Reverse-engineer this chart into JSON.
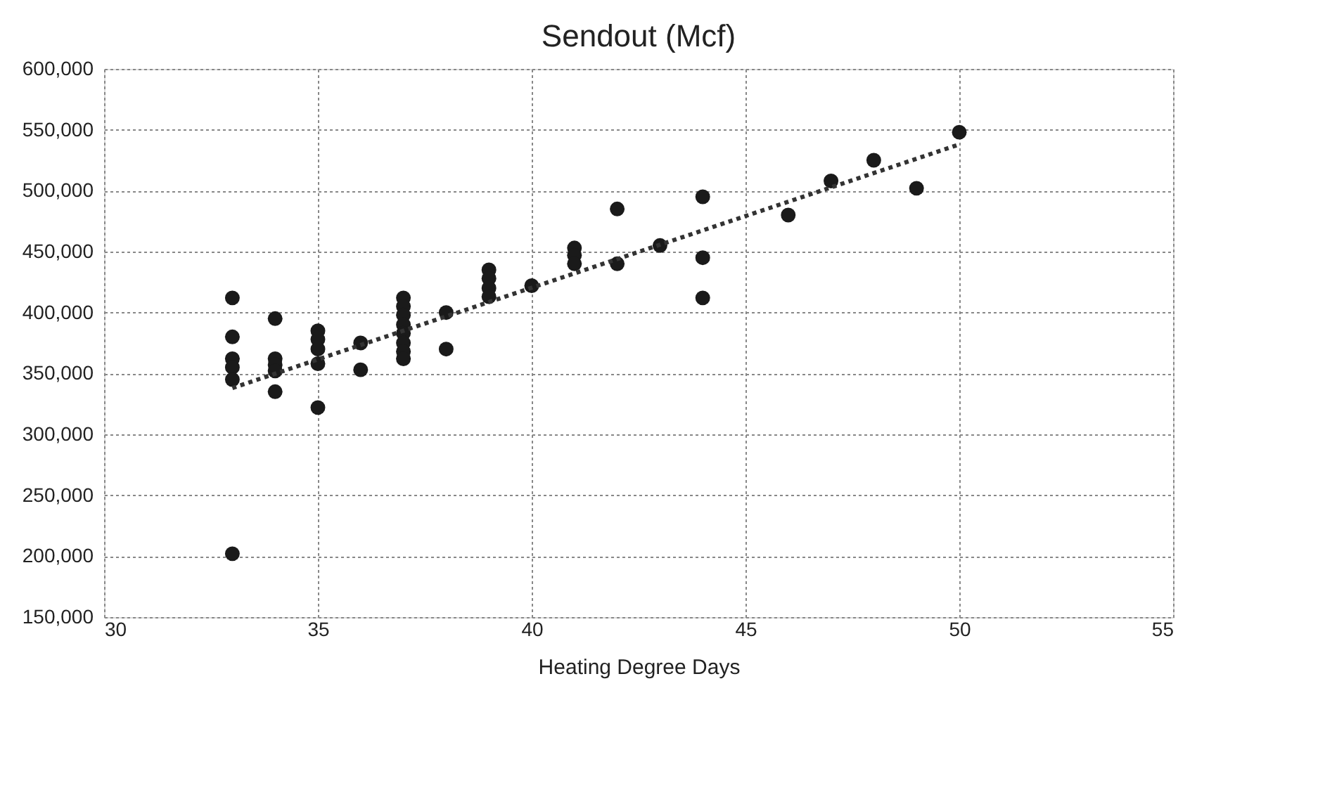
{
  "chart_data": {
    "type": "scatter",
    "title": "Sendout (Mcf)",
    "xlabel": "Heating Degree Days",
    "xlim": [
      30,
      55
    ],
    "xticks": [
      30,
      35,
      40,
      45,
      50,
      55
    ],
    "ylim": [
      150000,
      600000
    ],
    "yticks": [
      {
        "value": 150000,
        "label": "150,000"
      },
      {
        "value": 200000,
        "label": "200,000"
      },
      {
        "value": 250000,
        "label": "250,000"
      },
      {
        "value": 300000,
        "label": "300,000"
      },
      {
        "value": 350000,
        "label": "350,000"
      },
      {
        "value": 400000,
        "label": "400,000"
      },
      {
        "value": 450000,
        "label": "450,000"
      },
      {
        "value": 500000,
        "label": "500,000"
      },
      {
        "value": 550000,
        "label": "550,000"
      },
      {
        "value": 600000,
        "label": "600,000"
      }
    ],
    "grid": true,
    "marker": "circle",
    "series": [
      {
        "color": "#1a1a1a",
        "x": [
          33,
          33,
          33,
          33,
          33,
          33,
          34,
          34,
          34,
          34,
          34,
          35,
          35,
          35,
          35,
          35,
          36,
          36,
          37,
          37,
          37,
          37,
          37,
          37,
          37,
          37,
          38,
          38,
          39,
          39,
          39,
          39,
          40,
          41,
          41,
          41,
          42,
          42,
          43,
          44,
          44,
          44,
          46,
          47,
          48,
          49,
          50
        ],
        "values": [
          412000,
          380000,
          362000,
          355000,
          345000,
          202000,
          395000,
          362000,
          357000,
          352000,
          335000,
          385000,
          378000,
          370000,
          358000,
          322000,
          375000,
          353000,
          412000,
          405000,
          398000,
          390000,
          383000,
          375000,
          368000,
          362000,
          400000,
          370000,
          435000,
          428000,
          420000,
          413000,
          422000,
          453000,
          447000,
          440000,
          485000,
          440000,
          455000,
          495000,
          445000,
          412000,
          480000,
          508000,
          525000,
          502000,
          548000
        ]
      },
      {
        "type": "line",
        "color": "#333333",
        "line_style": "dotted",
        "marker": "none",
        "x": [
          33,
          50
        ],
        "values": [
          338000,
          538000
        ]
      }
    ]
  }
}
